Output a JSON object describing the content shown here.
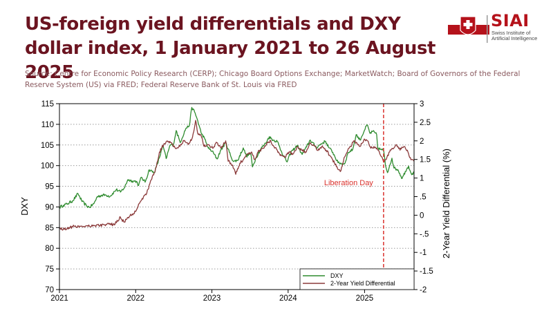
{
  "header": {
    "title": "US-foreign yield differentials and DXY dollar index, 1 January 2021 to 26 August 2025",
    "source": "Source: Centre for Economic Policy Research (CERP); Chicago Board Options Exchange; MarketWatch; Board of Governors of the Federal Reserve System (US) via FRED;  Federal Reserve Bank of St. Louis via FRED"
  },
  "logo": {
    "name": "SIAI",
    "subtitle": "Swiss Institute of Artificial Intelligence",
    "icon": "siai-shield-logo",
    "color": "#b5121b"
  },
  "chart_data": {
    "type": "line",
    "title": "",
    "ylabel": "DXY",
    "y2label": "2-Year Yield Differential (%)",
    "xlim": [
      "2021-01-01",
      "2025-08-26"
    ],
    "ylim": [
      70,
      115
    ],
    "y2lim": [
      -2,
      3
    ],
    "x_ticks": [
      "2021",
      "2022",
      "2023",
      "2024",
      "2025"
    ],
    "y_ticks": [
      70,
      75,
      80,
      85,
      90,
      95,
      100,
      105,
      110,
      115
    ],
    "y2_ticks": [
      "-2",
      "-1.5",
      "-1",
      "-.5",
      "0",
      ".5",
      "1",
      "1.5",
      "2",
      "2.5",
      "3"
    ],
    "grid": "horizontal-dotted",
    "legend_position": "bottom-right",
    "series": [
      {
        "name": "DXY",
        "axis": "left",
        "color": "#2e8b2e",
        "points": [
          [
            "2021-01-01",
            89.9
          ],
          [
            "2021-01-20",
            90.4
          ],
          [
            "2021-02-10",
            90.8
          ],
          [
            "2021-03-05",
            91.5
          ],
          [
            "2021-03-31",
            93.2
          ],
          [
            "2021-04-20",
            91.3
          ],
          [
            "2021-05-10",
            90.3
          ],
          [
            "2021-05-25",
            89.9
          ],
          [
            "2021-06-15",
            90.8
          ],
          [
            "2021-07-01",
            92.5
          ],
          [
            "2021-07-20",
            92.8
          ],
          [
            "2021-08-10",
            92.9
          ],
          [
            "2021-09-01",
            92.6
          ],
          [
            "2021-09-30",
            94.2
          ],
          [
            "2021-10-20",
            93.6
          ],
          [
            "2021-11-10",
            94.8
          ],
          [
            "2021-11-24",
            96.6
          ],
          [
            "2021-12-15",
            96.3
          ],
          [
            "2022-01-05",
            96.2
          ],
          [
            "2022-01-15",
            95.2
          ],
          [
            "2022-01-28",
            97.2
          ],
          [
            "2022-02-15",
            96.0
          ],
          [
            "2022-03-07",
            99.0
          ],
          [
            "2022-03-31",
            98.3
          ],
          [
            "2022-04-15",
            100.4
          ],
          [
            "2022-05-12",
            104.8
          ],
          [
            "2022-05-27",
            101.7
          ],
          [
            "2022-06-15",
            105.0
          ],
          [
            "2022-07-01",
            105.1
          ],
          [
            "2022-07-14",
            108.5
          ],
          [
            "2022-08-02",
            105.6
          ],
          [
            "2022-08-29",
            109.0
          ],
          [
            "2022-09-15",
            109.7
          ],
          [
            "2022-09-27",
            114.1
          ],
          [
            "2022-10-10",
            113.0
          ],
          [
            "2022-10-25",
            110.9
          ],
          [
            "2022-11-10",
            108.0
          ],
          [
            "2022-11-28",
            106.4
          ],
          [
            "2022-12-15",
            104.2
          ],
          [
            "2023-01-02",
            103.5
          ],
          [
            "2023-01-26",
            101.6
          ],
          [
            "2023-02-10",
            103.5
          ],
          [
            "2023-03-08",
            105.6
          ],
          [
            "2023-03-31",
            102.5
          ],
          [
            "2023-04-14",
            101.0
          ],
          [
            "2023-05-05",
            101.3
          ],
          [
            "2023-05-31",
            104.3
          ],
          [
            "2023-06-15",
            102.3
          ],
          [
            "2023-07-06",
            103.0
          ],
          [
            "2023-07-14",
            99.7
          ],
          [
            "2023-08-01",
            102.0
          ],
          [
            "2023-08-25",
            104.2
          ],
          [
            "2023-09-15",
            105.4
          ],
          [
            "2023-10-03",
            107.0
          ],
          [
            "2023-10-20",
            106.2
          ],
          [
            "2023-11-10",
            105.9
          ],
          [
            "2023-12-01",
            103.3
          ],
          [
            "2023-12-27",
            100.9
          ],
          [
            "2024-01-15",
            103.3
          ],
          [
            "2024-02-14",
            104.9
          ],
          [
            "2024-03-08",
            102.7
          ],
          [
            "2024-03-29",
            104.5
          ],
          [
            "2024-04-16",
            106.2
          ],
          [
            "2024-05-15",
            104.4
          ],
          [
            "2024-06-14",
            105.5
          ],
          [
            "2024-06-28",
            105.9
          ],
          [
            "2024-07-15",
            104.3
          ],
          [
            "2024-08-02",
            103.2
          ],
          [
            "2024-08-27",
            100.7
          ],
          [
            "2024-09-27",
            100.4
          ],
          [
            "2024-10-15",
            103.2
          ],
          [
            "2024-11-05",
            103.9
          ],
          [
            "2024-11-22",
            107.5
          ],
          [
            "2024-12-10",
            106.2
          ],
          [
            "2024-12-31",
            108.5
          ],
          [
            "2025-01-13",
            109.9
          ],
          [
            "2025-01-27",
            107.8
          ],
          [
            "2025-02-10",
            108.3
          ],
          [
            "2025-02-28",
            107.5
          ],
          [
            "2025-03-05",
            104.3
          ],
          [
            "2025-03-20",
            103.9
          ],
          [
            "2025-04-02",
            103.8
          ],
          [
            "2025-04-11",
            100.1
          ],
          [
            "2025-04-21",
            98.3
          ],
          [
            "2025-05-01",
            100.0
          ],
          [
            "2025-05-12",
            101.8
          ],
          [
            "2025-05-22",
            99.4
          ],
          [
            "2025-06-10",
            99.0
          ],
          [
            "2025-06-30",
            96.9
          ],
          [
            "2025-07-15",
            98.6
          ],
          [
            "2025-07-31",
            99.9
          ],
          [
            "2025-08-12",
            98.1
          ],
          [
            "2025-08-26",
            98.2
          ]
        ]
      },
      {
        "name": "2-Year Yield Differential",
        "axis": "right",
        "color": "#8b3a3a",
        "points": [
          [
            "2021-01-01",
            -0.35
          ],
          [
            "2021-01-25",
            -0.38
          ],
          [
            "2021-02-15",
            -0.33
          ],
          [
            "2021-03-15",
            -0.3
          ],
          [
            "2021-04-15",
            -0.3
          ],
          [
            "2021-05-15",
            -0.28
          ],
          [
            "2021-06-15",
            -0.28
          ],
          [
            "2021-07-15",
            -0.27
          ],
          [
            "2021-08-15",
            -0.25
          ],
          [
            "2021-09-15",
            -0.25
          ],
          [
            "2021-10-01",
            -0.2
          ],
          [
            "2021-10-20",
            -0.05
          ],
          [
            "2021-11-05",
            -0.18
          ],
          [
            "2021-11-20",
            -0.1
          ],
          [
            "2021-12-10",
            0.0
          ],
          [
            "2021-12-31",
            0.1
          ],
          [
            "2022-01-15",
            0.3
          ],
          [
            "2022-02-01",
            0.45
          ],
          [
            "2022-02-20",
            0.55
          ],
          [
            "2022-03-10",
            0.85
          ],
          [
            "2022-03-31",
            1.15
          ],
          [
            "2022-04-10",
            1.3
          ],
          [
            "2022-04-25",
            1.7
          ],
          [
            "2022-05-15",
            1.9
          ],
          [
            "2022-06-01",
            2.0
          ],
          [
            "2022-06-20",
            1.95
          ],
          [
            "2022-07-10",
            1.8
          ],
          [
            "2022-08-01",
            1.85
          ],
          [
            "2022-08-20",
            2.0
          ],
          [
            "2022-09-10",
            1.9
          ],
          [
            "2022-09-30",
            2.1
          ],
          [
            "2022-10-15",
            2.55
          ],
          [
            "2022-10-25",
            2.2
          ],
          [
            "2022-11-10",
            2.15
          ],
          [
            "2022-11-25",
            1.85
          ],
          [
            "2022-12-15",
            1.9
          ],
          [
            "2023-01-05",
            1.8
          ],
          [
            "2023-01-25",
            1.95
          ],
          [
            "2023-02-15",
            1.8
          ],
          [
            "2023-03-08",
            2.0
          ],
          [
            "2023-03-20",
            1.45
          ],
          [
            "2023-04-10",
            1.35
          ],
          [
            "2023-04-25",
            1.1
          ],
          [
            "2023-05-15",
            1.4
          ],
          [
            "2023-06-01",
            1.5
          ],
          [
            "2023-06-20",
            1.65
          ],
          [
            "2023-07-10",
            1.7
          ],
          [
            "2023-07-25",
            1.5
          ],
          [
            "2023-08-10",
            1.7
          ],
          [
            "2023-09-01",
            1.8
          ],
          [
            "2023-09-25",
            1.95
          ],
          [
            "2023-10-10",
            2.0
          ],
          [
            "2023-10-25",
            1.85
          ],
          [
            "2023-11-10",
            1.75
          ],
          [
            "2023-11-30",
            1.6
          ],
          [
            "2023-12-15",
            1.55
          ],
          [
            "2024-01-05",
            1.7
          ],
          [
            "2024-01-25",
            1.65
          ],
          [
            "2024-02-15",
            1.85
          ],
          [
            "2024-03-05",
            1.75
          ],
          [
            "2024-03-25",
            1.7
          ],
          [
            "2024-04-15",
            1.95
          ],
          [
            "2024-05-01",
            1.9
          ],
          [
            "2024-05-20",
            1.75
          ],
          [
            "2024-06-10",
            1.85
          ],
          [
            "2024-07-01",
            1.75
          ],
          [
            "2024-07-20",
            1.6
          ],
          [
            "2024-08-10",
            1.4
          ],
          [
            "2024-08-25",
            1.25
          ],
          [
            "2024-09-10",
            1.2
          ],
          [
            "2024-09-25",
            1.55
          ],
          [
            "2024-10-10",
            1.7
          ],
          [
            "2024-10-25",
            1.85
          ],
          [
            "2024-11-10",
            2.0
          ],
          [
            "2024-11-25",
            1.95
          ],
          [
            "2024-12-10",
            1.85
          ],
          [
            "2024-12-31",
            2.05
          ],
          [
            "2025-01-15",
            2.0
          ],
          [
            "2025-01-31",
            1.8
          ],
          [
            "2025-02-15",
            1.85
          ],
          [
            "2025-03-01",
            1.8
          ],
          [
            "2025-03-15",
            1.65
          ],
          [
            "2025-04-01",
            1.45
          ],
          [
            "2025-04-15",
            1.5
          ],
          [
            "2025-05-01",
            1.7
          ],
          [
            "2025-05-15",
            1.8
          ],
          [
            "2025-06-01",
            1.9
          ],
          [
            "2025-06-20",
            1.75
          ],
          [
            "2025-07-10",
            1.85
          ],
          [
            "2025-07-25",
            1.75
          ],
          [
            "2025-08-05",
            1.55
          ],
          [
            "2025-08-26",
            1.45
          ]
        ]
      }
    ],
    "annotations": [
      {
        "text": "Liberation Day",
        "date": "2025-04-02",
        "style": "dashed-vertical",
        "color": "#d9302b"
      }
    ]
  }
}
